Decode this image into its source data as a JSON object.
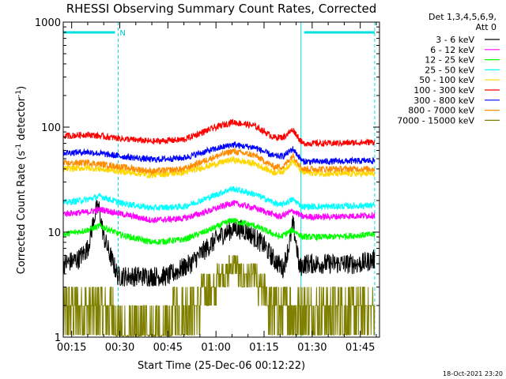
{
  "chart_data": {
    "type": "line",
    "title": "RHESSI Observing Summary Count Rates, Corrected",
    "xlabel": "Start Time (25-Dec-06 00:12:22)",
    "ylabel_parts": [
      "Corrected Count Rate (s",
      "-1",
      " detector",
      "-1",
      ")"
    ],
    "x_ticks": [
      "00:15",
      "00:30",
      "00:45",
      "01:00",
      "01:15",
      "01:30",
      "01:45"
    ],
    "x_range_min": [
      12.37,
      111.0
    ],
    "y_ticks": [
      "1",
      "10",
      "100",
      "1000"
    ],
    "yscale": "log",
    "ylim": [
      1,
      1000
    ],
    "legend_header": [
      "Det 1,3,4,5,6,9,",
      "Att 0"
    ],
    "legend_position": "top-right",
    "flag_bars": [
      {
        "start_min": 12.37,
        "end_min": 28.5,
        "label": "N"
      },
      {
        "start_min": 87.5,
        "end_min": 109.5,
        "label": ""
      }
    ],
    "eclipse_boundaries_min": [
      12.37,
      29.5,
      86.5,
      109.5
    ],
    "series": [
      {
        "name": "3 - 6 keV",
        "color": "#000000",
        "anchors_x": [
          12.37,
          17,
          20,
          22.5,
          23.5,
          25,
          27,
          29.5,
          35,
          45,
          52,
          57,
          62,
          66,
          70,
          75,
          78,
          81,
          83,
          84,
          85,
          86,
          87.5,
          95,
          105,
          109.5
        ],
        "anchors_y": [
          5,
          5.5,
          7,
          16,
          17,
          9,
          6,
          3.8,
          3.8,
          3.8,
          5,
          7,
          9.5,
          11,
          10,
          7.5,
          5.5,
          4.5,
          8,
          12,
          8,
          4.5,
          5,
          5,
          5,
          5.5
        ]
      },
      {
        "name": "6 - 12 keV",
        "color": "#ff00ff",
        "anchors_x": [
          12.37,
          20,
          24,
          30,
          40,
          50,
          58,
          65,
          72,
          80,
          84,
          87,
          95,
          109.5
        ],
        "anchors_y": [
          15,
          15.5,
          16.5,
          15,
          13,
          13.5,
          16,
          19,
          17,
          14,
          16,
          14,
          14,
          14.5
        ]
      },
      {
        "name": "12 - 25 keV",
        "color": "#00ff00",
        "anchors_x": [
          12.37,
          20,
          24,
          30,
          40,
          50,
          58,
          65,
          72,
          80,
          84,
          87,
          95,
          109.5
        ],
        "anchors_y": [
          9.5,
          10.5,
          11.5,
          9.5,
          8,
          8.5,
          10.5,
          13,
          11.5,
          9,
          10.5,
          9,
          9,
          9.5
        ]
      },
      {
        "name": "25 - 50 keV",
        "color": "#00ffff",
        "anchors_x": [
          12.37,
          20,
          24,
          30,
          40,
          50,
          58,
          65,
          72,
          80,
          84,
          87,
          95,
          109.5
        ],
        "anchors_y": [
          19,
          20.5,
          22,
          19,
          17,
          17.5,
          21.5,
          26,
          23,
          18,
          20.5,
          17.5,
          17.5,
          18
        ]
      },
      {
        "name": "50 - 100 keV",
        "color": "#ffd700",
        "anchors_x": [
          12.37,
          20,
          30,
          40,
          50,
          58,
          65,
          72,
          78,
          81,
          84,
          87,
          95,
          109.5
        ],
        "anchors_y": [
          40,
          41,
          38,
          35,
          37,
          43,
          49,
          45,
          37,
          38,
          48,
          37,
          36,
          36
        ]
      },
      {
        "name": "100 - 300 keV",
        "color": "#ff0000",
        "anchors_x": [
          12.37,
          20,
          30,
          40,
          50,
          58,
          65,
          72,
          78,
          81,
          84,
          87,
          95,
          109.5
        ],
        "anchors_y": [
          82,
          85,
          78,
          73,
          76,
          95,
          112,
          103,
          80,
          80,
          95,
          70,
          70,
          72
        ]
      },
      {
        "name": "300 - 800 keV",
        "color": "#0000ff",
        "anchors_x": [
          12.37,
          20,
          30,
          40,
          50,
          58,
          65,
          72,
          78,
          81,
          84,
          87,
          95,
          109.5
        ],
        "anchors_y": [
          57,
          58,
          53,
          49,
          51,
          60,
          68,
          64,
          53,
          53,
          62,
          47,
          47,
          48
        ]
      },
      {
        "name": "800 - 7000 keV",
        "color": "#ff8c00",
        "anchors_x": [
          12.37,
          20,
          30,
          40,
          50,
          58,
          65,
          72,
          78,
          81,
          84,
          87,
          95,
          109.5
        ],
        "anchors_y": [
          45,
          46,
          42,
          38,
          40,
          50,
          59,
          54,
          42,
          42,
          54,
          40,
          40,
          40
        ]
      },
      {
        "name": "7000 - 15000 keV",
        "color": "#808000",
        "anchors_x": [
          12.37,
          20,
          25,
          29.5,
          45,
          52,
          58,
          65,
          72,
          76,
          82,
          84,
          86.5,
          95,
          109.5
        ],
        "anchors_y": [
          2.2,
          2.2,
          2.0,
          1.4,
          1.4,
          2.0,
          3.0,
          4.8,
          3.8,
          2.5,
          1.6,
          2.5,
          1.6,
          2.2,
          2.2
        ]
      }
    ]
  },
  "footer_timestamp": "18-Oct-2021 23:20"
}
